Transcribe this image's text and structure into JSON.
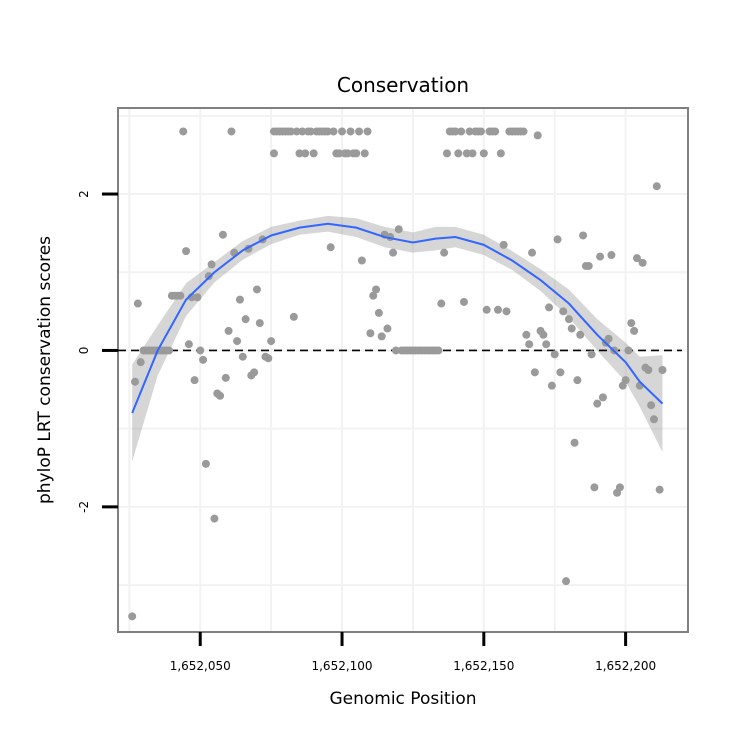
{
  "colors": {
    "points": "#9a9a9a",
    "smooth": "#3366ff",
    "band": "#999999",
    "panel_border": "#808080",
    "background": "#ffffff"
  },
  "chart_data": {
    "type": "scatter",
    "title": "Conservation",
    "xlabel": "Genomic Position",
    "ylabel": "phyloP LRT conservation scores",
    "xlim": [
      1652021,
      1652222
    ],
    "ylim": [
      -3.6,
      3.1
    ],
    "x_ticks": [
      {
        "value": 1652050,
        "label": "1,652,050"
      },
      {
        "value": 1652100,
        "label": "1,652,100"
      },
      {
        "value": 1652150,
        "label": "1,652,150"
      },
      {
        "value": 1652200,
        "label": "1,652,200"
      }
    ],
    "y_ticks": [
      {
        "value": -2,
        "label": "-2"
      },
      {
        "value": 0,
        "label": "0"
      },
      {
        "value": 2,
        "label": "2"
      }
    ],
    "minor_x": [
      1652025,
      1652075,
      1652125,
      1652175,
      1652225
    ],
    "minor_y": [
      -3,
      -1,
      1,
      3
    ],
    "grid": true,
    "reference_line": {
      "y": 0,
      "style": "dashed"
    },
    "points": [
      [
        1652026,
        -3.4
      ],
      [
        1652027,
        -0.4
      ],
      [
        1652028,
        0.6
      ],
      [
        1652029,
        -0.15
      ],
      [
        1652030,
        0.0
      ],
      [
        1652031,
        0.0
      ],
      [
        1652032,
        0.0
      ],
      [
        1652033,
        0.0
      ],
      [
        1652034,
        0.0
      ],
      [
        1652035,
        0.0
      ],
      [
        1652036,
        0.0
      ],
      [
        1652037,
        0.0
      ],
      [
        1652038,
        0.0
      ],
      [
        1652039,
        0.0
      ],
      [
        1652040,
        0.7
      ],
      [
        1652041,
        0.7
      ],
      [
        1652042,
        0.7
      ],
      [
        1652043,
        0.7
      ],
      [
        1652044,
        2.8
      ],
      [
        1652045,
        1.27
      ],
      [
        1652046,
        0.08
      ],
      [
        1652047,
        0.68
      ],
      [
        1652048,
        -0.38
      ],
      [
        1652049,
        0.68
      ],
      [
        1652050,
        0.0
      ],
      [
        1652051,
        -0.12
      ],
      [
        1652052,
        -1.45
      ],
      [
        1652053,
        0.95
      ],
      [
        1652054,
        1.1
      ],
      [
        1652055,
        -2.15
      ],
      [
        1652056,
        -0.55
      ],
      [
        1652057,
        -0.58
      ],
      [
        1652058,
        1.48
      ],
      [
        1652059,
        -0.35
      ],
      [
        1652060,
        0.25
      ],
      [
        1652061,
        2.8
      ],
      [
        1652062,
        1.25
      ],
      [
        1652063,
        0.12
      ],
      [
        1652064,
        0.65
      ],
      [
        1652065,
        -0.08
      ],
      [
        1652066,
        0.4
      ],
      [
        1652067,
        1.3
      ],
      [
        1652068,
        -0.32
      ],
      [
        1652069,
        -0.28
      ],
      [
        1652070,
        0.78
      ],
      [
        1652071,
        0.35
      ],
      [
        1652072,
        1.42
      ],
      [
        1652073,
        -0.08
      ],
      [
        1652074,
        -0.1
      ],
      [
        1652075,
        0.12
      ],
      [
        1652076,
        2.52
      ],
      [
        1652076,
        2.8
      ],
      [
        1652077,
        2.8
      ],
      [
        1652078,
        2.8
      ],
      [
        1652079,
        2.8
      ],
      [
        1652080,
        2.8
      ],
      [
        1652081,
        2.8
      ],
      [
        1652082,
        2.8
      ],
      [
        1652083,
        0.43
      ],
      [
        1652084,
        2.8
      ],
      [
        1652085,
        2.52
      ],
      [
        1652086,
        2.8
      ],
      [
        1652087,
        2.52
      ],
      [
        1652088,
        2.8
      ],
      [
        1652089,
        2.8
      ],
      [
        1652090,
        2.52
      ],
      [
        1652091,
        2.8
      ],
      [
        1652092,
        2.8
      ],
      [
        1652093,
        2.8
      ],
      [
        1652094,
        2.8
      ],
      [
        1652095,
        2.8
      ],
      [
        1652096,
        1.32
      ],
      [
        1652097,
        2.8
      ],
      [
        1652098,
        2.52
      ],
      [
        1652099,
        2.52
      ],
      [
        1652100,
        2.8
      ],
      [
        1652101,
        2.52
      ],
      [
        1652102,
        2.52
      ],
      [
        1652103,
        2.8
      ],
      [
        1652104,
        2.52
      ],
      [
        1652105,
        2.52
      ],
      [
        1652106,
        2.8
      ],
      [
        1652107,
        1.15
      ],
      [
        1652108,
        2.52
      ],
      [
        1652109,
        2.8
      ],
      [
        1652110,
        0.22
      ],
      [
        1652111,
        0.7
      ],
      [
        1652112,
        0.78
      ],
      [
        1652113,
        0.48
      ],
      [
        1652114,
        0.18
      ],
      [
        1652115,
        1.48
      ],
      [
        1652116,
        0.28
      ],
      [
        1652117,
        1.45
      ],
      [
        1652118,
        1.25
      ],
      [
        1652119,
        0.0
      ],
      [
        1652120,
        1.55
      ],
      [
        1652121,
        0.0
      ],
      [
        1652122,
        0.0
      ],
      [
        1652123,
        0.0
      ],
      [
        1652124,
        0.0
      ],
      [
        1652125,
        0.0
      ],
      [
        1652126,
        0.0
      ],
      [
        1652127,
        0.0
      ],
      [
        1652128,
        0.0
      ],
      [
        1652129,
        0.0
      ],
      [
        1652130,
        0.0
      ],
      [
        1652131,
        0.0
      ],
      [
        1652132,
        0.0
      ],
      [
        1652133,
        0.0
      ],
      [
        1652134,
        0.0
      ],
      [
        1652135,
        0.6
      ],
      [
        1652136,
        1.25
      ],
      [
        1652137,
        2.52
      ],
      [
        1652138,
        2.8
      ],
      [
        1652139,
        2.8
      ],
      [
        1652140,
        2.8
      ],
      [
        1652141,
        2.52
      ],
      [
        1652142,
        2.8
      ],
      [
        1652143,
        0.62
      ],
      [
        1652144,
        2.52
      ],
      [
        1652145,
        2.8
      ],
      [
        1652146,
        2.52
      ],
      [
        1652147,
        2.8
      ],
      [
        1652148,
        2.8
      ],
      [
        1652149,
        2.8
      ],
      [
        1652150,
        2.52
      ],
      [
        1652151,
        0.52
      ],
      [
        1652152,
        2.8
      ],
      [
        1652153,
        2.8
      ],
      [
        1652154,
        2.8
      ],
      [
        1652155,
        0.52
      ],
      [
        1652156,
        2.52
      ],
      [
        1652157,
        1.35
      ],
      [
        1652158,
        0.5
      ],
      [
        1652159,
        2.8
      ],
      [
        1652160,
        2.8
      ],
      [
        1652161,
        2.8
      ],
      [
        1652162,
        2.8
      ],
      [
        1652163,
        2.8
      ],
      [
        1652164,
        2.8
      ],
      [
        1652165,
        0.2
      ],
      [
        1652166,
        0.08
      ],
      [
        1652167,
        1.25
      ],
      [
        1652168,
        -0.28
      ],
      [
        1652169,
        2.75
      ],
      [
        1652170,
        0.25
      ],
      [
        1652171,
        0.2
      ],
      [
        1652172,
        0.08
      ],
      [
        1652173,
        0.55
      ],
      [
        1652174,
        -0.45
      ],
      [
        1652175,
        -0.05
      ],
      [
        1652176,
        1.42
      ],
      [
        1652177,
        -0.28
      ],
      [
        1652178,
        0.5
      ],
      [
        1652179,
        -2.95
      ],
      [
        1652180,
        0.4
      ],
      [
        1652181,
        0.28
      ],
      [
        1652182,
        -1.18
      ],
      [
        1652183,
        -0.38
      ],
      [
        1652184,
        0.2
      ],
      [
        1652185,
        1.47
      ],
      [
        1652186,
        1.08
      ],
      [
        1652187,
        1.08
      ],
      [
        1652188,
        -0.05
      ],
      [
        1652189,
        -1.75
      ],
      [
        1652190,
        -0.68
      ],
      [
        1652191,
        1.2
      ],
      [
        1652192,
        -0.6
      ],
      [
        1652193,
        0.1
      ],
      [
        1652194,
        0.15
      ],
      [
        1652195,
        1.22
      ],
      [
        1652196,
        0.0
      ],
      [
        1652197,
        -1.82
      ],
      [
        1652198,
        -1.75
      ],
      [
        1652199,
        -0.45
      ],
      [
        1652200,
        -0.38
      ],
      [
        1652201,
        0.0
      ],
      [
        1652202,
        0.35
      ],
      [
        1652203,
        0.25
      ],
      [
        1652204,
        1.18
      ],
      [
        1652205,
        -0.45
      ],
      [
        1652206,
        1.12
      ],
      [
        1652207,
        -0.22
      ],
      [
        1652208,
        -0.25
      ],
      [
        1652209,
        -0.7
      ],
      [
        1652210,
        -0.88
      ],
      [
        1652211,
        2.1
      ],
      [
        1652212,
        -1.78
      ],
      [
        1652213,
        -0.25
      ]
    ],
    "smooth_fit": {
      "method": "loess",
      "line": [
        [
          1652026,
          -0.8
        ],
        [
          1652035,
          0.0
        ],
        [
          1652045,
          0.65
        ],
        [
          1652055,
          1.0
        ],
        [
          1652065,
          1.28
        ],
        [
          1652075,
          1.47
        ],
        [
          1652085,
          1.57
        ],
        [
          1652095,
          1.62
        ],
        [
          1652105,
          1.57
        ],
        [
          1652115,
          1.45
        ],
        [
          1652125,
          1.38
        ],
        [
          1652133,
          1.43
        ],
        [
          1652140,
          1.45
        ],
        [
          1652150,
          1.35
        ],
        [
          1652160,
          1.15
        ],
        [
          1652170,
          0.9
        ],
        [
          1652180,
          0.6
        ],
        [
          1652190,
          0.2
        ],
        [
          1652200,
          -0.15
        ],
        [
          1652205,
          -0.4
        ],
        [
          1652213,
          -0.68
        ]
      ],
      "lower": [
        [
          1652026,
          -1.42
        ],
        [
          1652035,
          -0.32
        ],
        [
          1652045,
          0.44
        ],
        [
          1652055,
          0.87
        ],
        [
          1652065,
          1.16
        ],
        [
          1652075,
          1.36
        ],
        [
          1652085,
          1.48
        ],
        [
          1652095,
          1.52
        ],
        [
          1652105,
          1.45
        ],
        [
          1652115,
          1.32
        ],
        [
          1652125,
          1.25
        ],
        [
          1652133,
          1.28
        ],
        [
          1652140,
          1.32
        ],
        [
          1652150,
          1.22
        ],
        [
          1652160,
          1.03
        ],
        [
          1652170,
          0.76
        ],
        [
          1652180,
          0.42
        ],
        [
          1652190,
          0.0
        ],
        [
          1652200,
          -0.4
        ],
        [
          1652205,
          -0.72
        ],
        [
          1652213,
          -1.3
        ]
      ],
      "upper": [
        [
          1652026,
          -0.18
        ],
        [
          1652035,
          0.32
        ],
        [
          1652045,
          0.86
        ],
        [
          1652055,
          1.13
        ],
        [
          1652065,
          1.4
        ],
        [
          1652075,
          1.58
        ],
        [
          1652085,
          1.66
        ],
        [
          1652095,
          1.72
        ],
        [
          1652105,
          1.69
        ],
        [
          1652115,
          1.58
        ],
        [
          1652125,
          1.51
        ],
        [
          1652133,
          1.58
        ],
        [
          1652140,
          1.58
        ],
        [
          1652150,
          1.48
        ],
        [
          1652160,
          1.27
        ],
        [
          1652170,
          1.04
        ],
        [
          1652180,
          0.78
        ],
        [
          1652190,
          0.4
        ],
        [
          1652200,
          0.1
        ],
        [
          1652205,
          -0.08
        ],
        [
          1652213,
          -0.06
        ]
      ]
    }
  }
}
